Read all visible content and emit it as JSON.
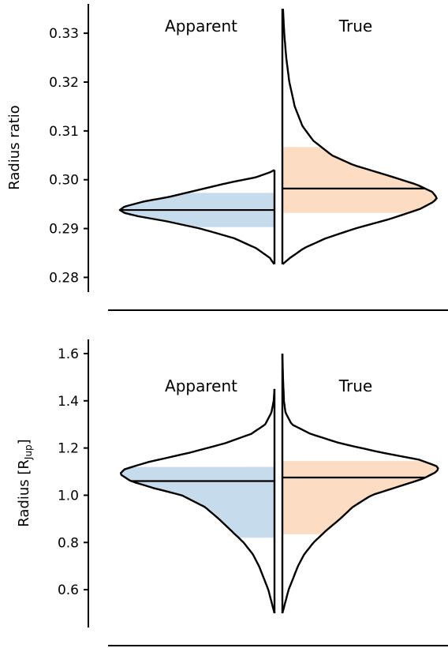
{
  "colors": {
    "apparent_fill": "#c6dbeb",
    "true_fill": "#fcdcc2",
    "line": "#000000"
  },
  "chart_data": [
    {
      "type": "violin",
      "ylabel": "Radius ratio",
      "ylim": [
        0.277,
        0.336
      ],
      "yticks": [
        {
          "value": 0.28,
          "label": "0.28"
        },
        {
          "value": 0.29,
          "label": "0.29"
        },
        {
          "value": 0.3,
          "label": "0.30"
        },
        {
          "value": 0.31,
          "label": "0.31"
        },
        {
          "value": 0.32,
          "label": "0.32"
        },
        {
          "value": 0.33,
          "label": "0.33"
        }
      ],
      "series": [
        {
          "name": "Apparent",
          "side": "left",
          "median": 0.2938,
          "interval": [
            0.2903,
            0.2973
          ],
          "density": [
            [
              0.2827,
              0.002
            ],
            [
              0.284,
              0.03
            ],
            [
              0.286,
              0.12
            ],
            [
              0.288,
              0.26
            ],
            [
              0.29,
              0.48
            ],
            [
              0.2915,
              0.7
            ],
            [
              0.2925,
              0.88
            ],
            [
              0.2932,
              0.97
            ],
            [
              0.2938,
              1.0
            ],
            [
              0.2945,
              0.97
            ],
            [
              0.2955,
              0.85
            ],
            [
              0.2965,
              0.68
            ],
            [
              0.298,
              0.48
            ],
            [
              0.2995,
              0.28
            ],
            [
              0.3005,
              0.12
            ],
            [
              0.3015,
              0.03
            ],
            [
              0.302,
              0.0
            ]
          ]
        },
        {
          "name": "True",
          "side": "right",
          "median": 0.2982,
          "interval": [
            0.2932,
            0.3067
          ],
          "density": [
            [
              0.2827,
              0.002
            ],
            [
              0.284,
              0.05
            ],
            [
              0.286,
              0.14
            ],
            [
              0.288,
              0.28
            ],
            [
              0.29,
              0.47
            ],
            [
              0.292,
              0.7
            ],
            [
              0.294,
              0.89
            ],
            [
              0.2955,
              0.98
            ],
            [
              0.2963,
              1.0
            ],
            [
              0.2975,
              0.97
            ],
            [
              0.299,
              0.87
            ],
            [
              0.301,
              0.67
            ],
            [
              0.303,
              0.46
            ],
            [
              0.305,
              0.32
            ],
            [
              0.308,
              0.2
            ],
            [
              0.311,
              0.13
            ],
            [
              0.315,
              0.08
            ],
            [
              0.32,
              0.045
            ],
            [
              0.325,
              0.025
            ],
            [
              0.33,
              0.012
            ],
            [
              0.335,
              0.004
            ]
          ]
        }
      ],
      "annotations": [
        "Apparent",
        "True"
      ]
    },
    {
      "type": "violin",
      "ylabel_main": "Radius [R",
      "ylabel_sub": "Jup",
      "ylabel_close": "]",
      "ylim": [
        0.44,
        1.66
      ],
      "yticks": [
        {
          "value": 0.6,
          "label": "0.6"
        },
        {
          "value": 0.8,
          "label": "0.8"
        },
        {
          "value": 1.0,
          "label": "1.0"
        },
        {
          "value": 1.2,
          "label": "1.2"
        },
        {
          "value": 1.4,
          "label": "1.4"
        },
        {
          "value": 1.6,
          "label": "1.6"
        }
      ],
      "series": [
        {
          "name": "Apparent",
          "side": "left",
          "median": 1.06,
          "interval": [
            0.82,
            1.12
          ],
          "density": [
            [
              0.5,
              0.0
            ],
            [
              0.55,
              0.02
            ],
            [
              0.6,
              0.04
            ],
            [
              0.65,
              0.07
            ],
            [
              0.7,
              0.1
            ],
            [
              0.75,
              0.14
            ],
            [
              0.8,
              0.2
            ],
            [
              0.85,
              0.28
            ],
            [
              0.9,
              0.36
            ],
            [
              0.95,
              0.45
            ],
            [
              1.0,
              0.6
            ],
            [
              1.03,
              0.78
            ],
            [
              1.06,
              0.93
            ],
            [
              1.09,
              1.0
            ],
            [
              1.11,
              0.97
            ],
            [
              1.14,
              0.82
            ],
            [
              1.18,
              0.55
            ],
            [
              1.22,
              0.32
            ],
            [
              1.26,
              0.15
            ],
            [
              1.3,
              0.06
            ],
            [
              1.35,
              0.02
            ],
            [
              1.4,
              0.005
            ],
            [
              1.45,
              0.0
            ]
          ]
        },
        {
          "name": "True",
          "side": "right",
          "median": 1.075,
          "interval": [
            0.835,
            1.145
          ],
          "density": [
            [
              0.5,
              0.0
            ],
            [
              0.55,
              0.02
            ],
            [
              0.6,
              0.04
            ],
            [
              0.65,
              0.07
            ],
            [
              0.7,
              0.1
            ],
            [
              0.75,
              0.14
            ],
            [
              0.8,
              0.2
            ],
            [
              0.85,
              0.28
            ],
            [
              0.9,
              0.37
            ],
            [
              0.95,
              0.45
            ],
            [
              1.0,
              0.57
            ],
            [
              1.04,
              0.76
            ],
            [
              1.07,
              0.9
            ],
            [
              1.1,
              0.99
            ],
            [
              1.12,
              1.0
            ],
            [
              1.15,
              0.88
            ],
            [
              1.18,
              0.64
            ],
            [
              1.22,
              0.37
            ],
            [
              1.26,
              0.18
            ],
            [
              1.3,
              0.06
            ],
            [
              1.35,
              0.02
            ],
            [
              1.4,
              0.01
            ],
            [
              1.5,
              0.004
            ],
            [
              1.6,
              0.0
            ]
          ]
        }
      ],
      "annotations": [
        "Apparent",
        "True"
      ]
    }
  ]
}
